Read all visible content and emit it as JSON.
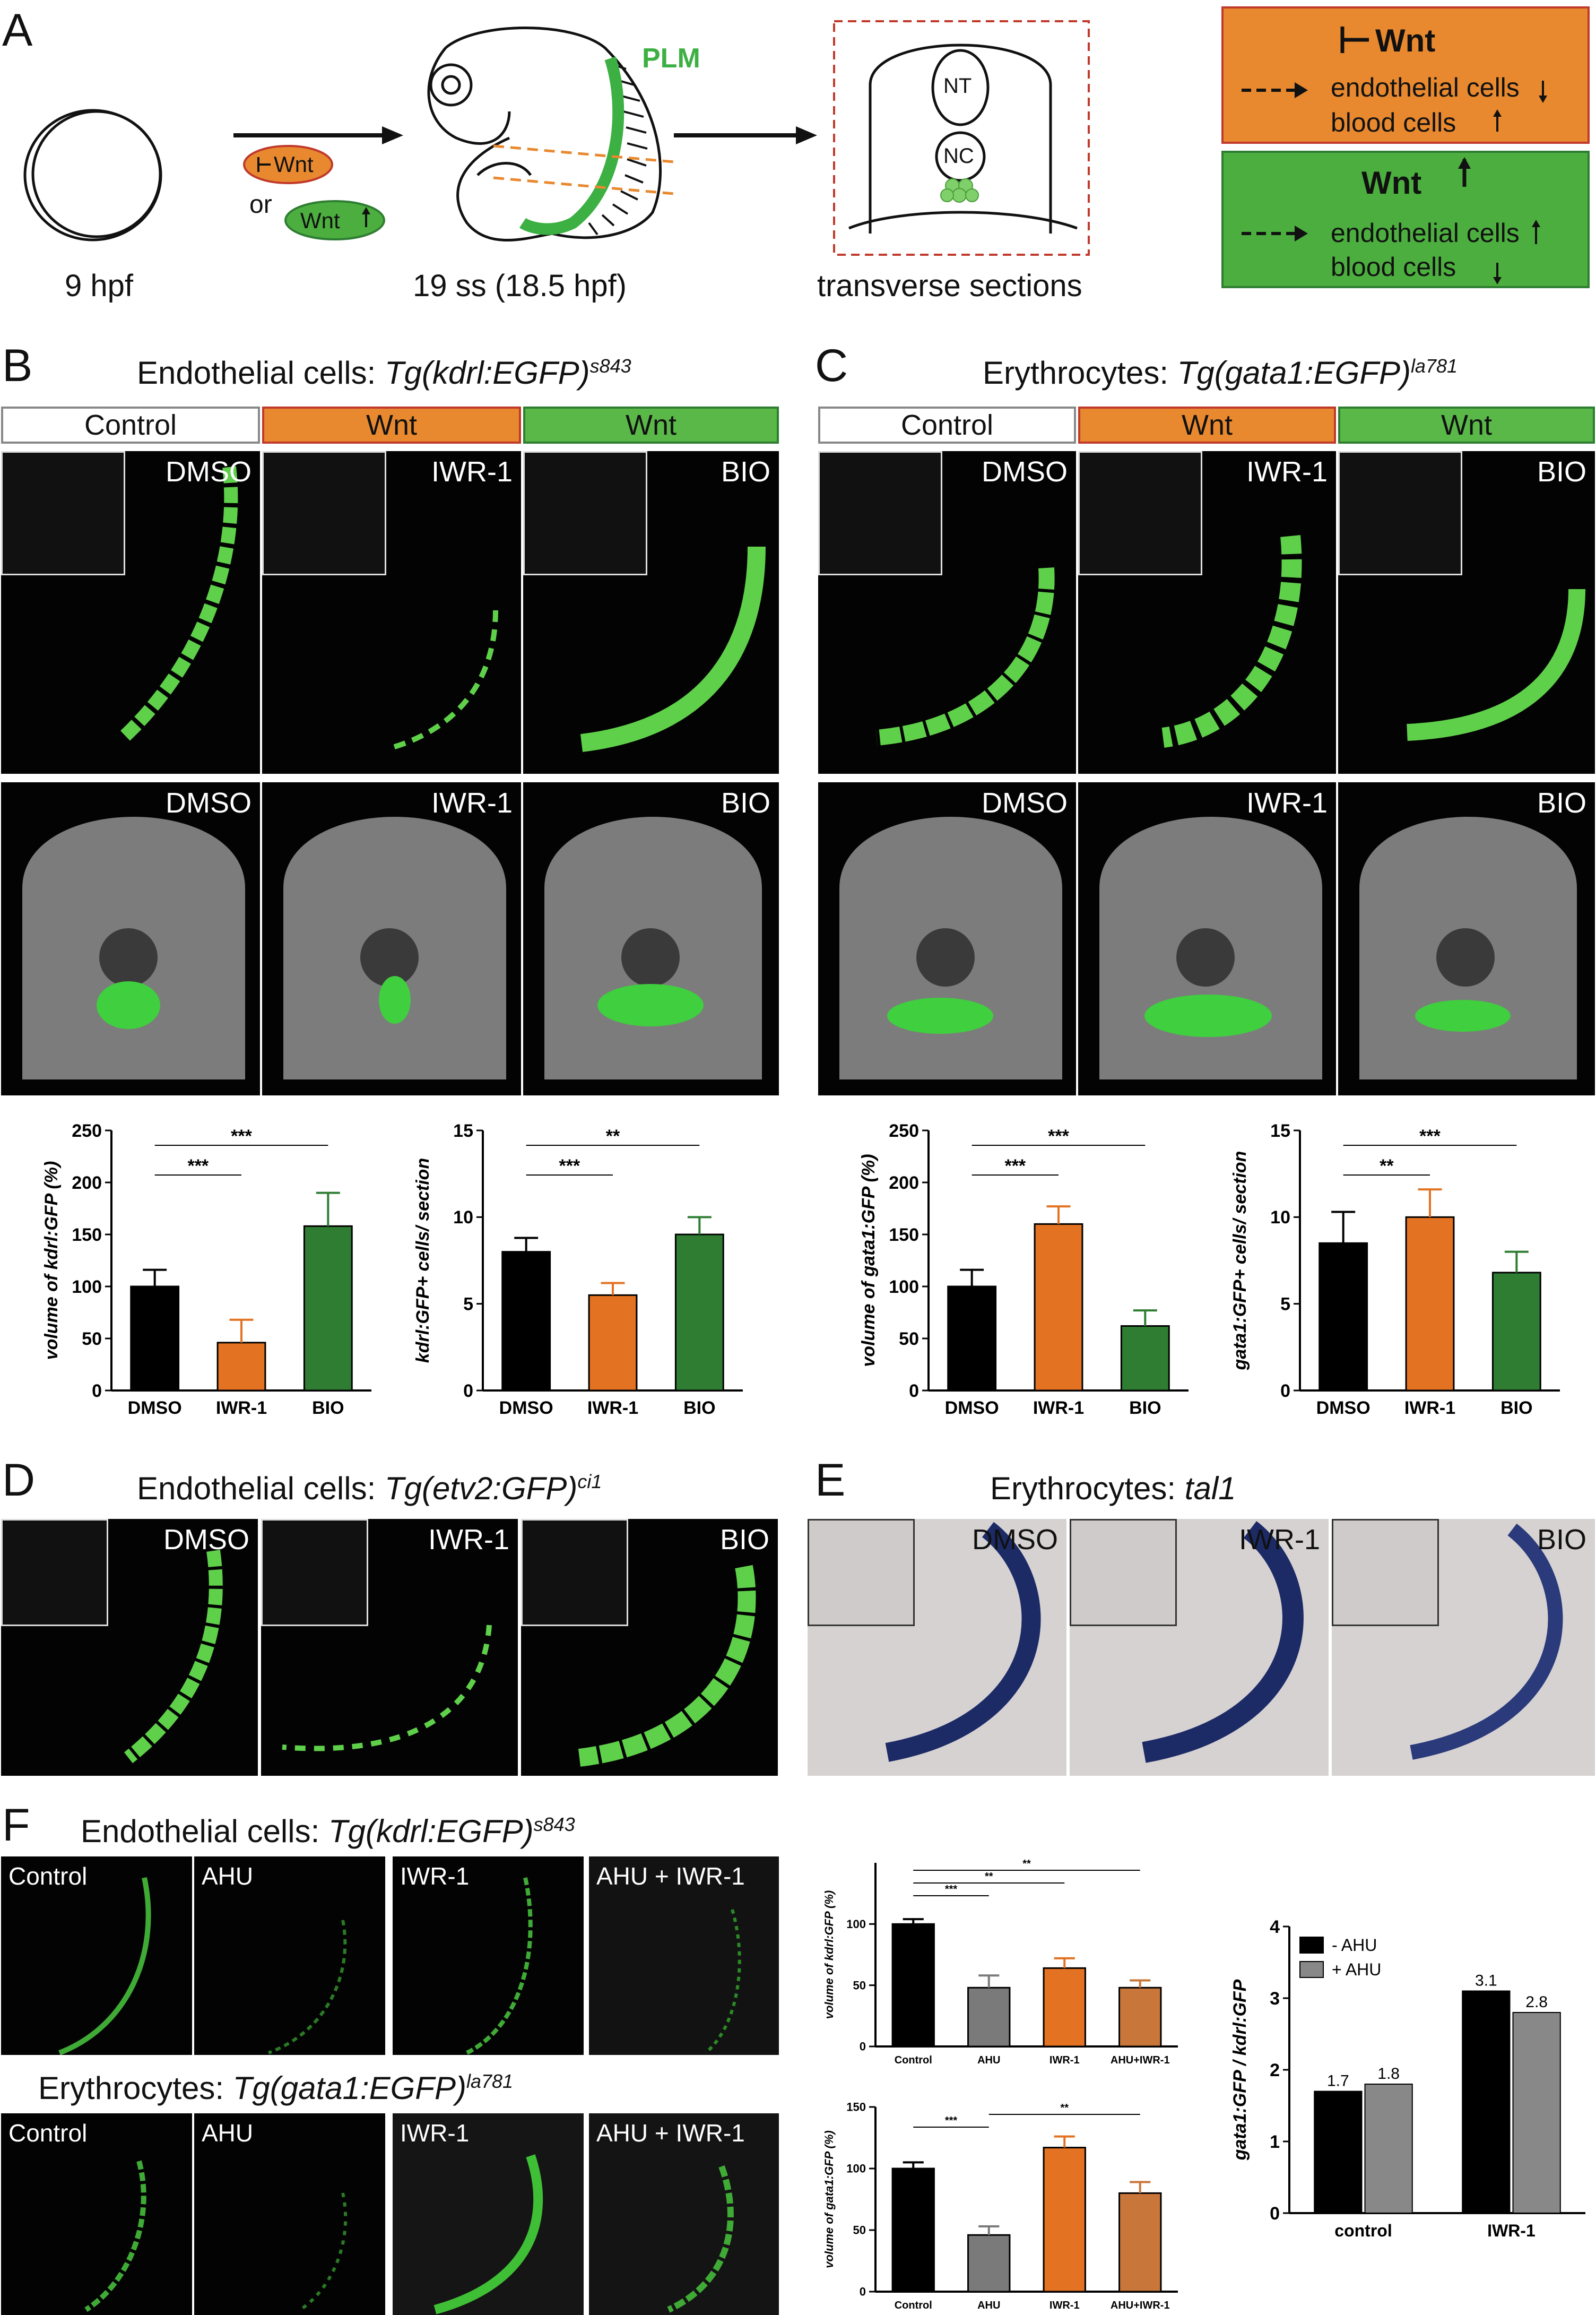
{
  "panel_labels": {
    "a": "A",
    "b": "B",
    "c": "C",
    "d": "D",
    "e": "E",
    "f": "F"
  },
  "panel_a": {
    "label_9hpf": "9 hpf",
    "label_19ss": "19 ss (18.5 hpf)",
    "label_sections": "transverse sections",
    "plm": "PLM",
    "nt": "NT",
    "nc": "NC",
    "or": "or",
    "inhibit_pill": "Wnt",
    "activate_pill": "Wnt",
    "box_inhibit": {
      "title": "Wnt",
      "line1": "endothelial cells",
      "line2": "blood cells"
    },
    "box_activate": {
      "title": "Wnt",
      "line1": "endothelial cells",
      "line2": "blood cells"
    },
    "colors": {
      "orange": "#e8892f",
      "green": "#4cae3f",
      "plm": "#3cb043"
    }
  },
  "panel_b": {
    "title_prefix": "Endothelial cells: ",
    "title_gene": "Tg(kdrl:EGFP)",
    "title_sup": "s843",
    "headers": [
      "Control",
      "Wnt",
      "Wnt"
    ],
    "image_labels": [
      "DMSO",
      "IWR-1",
      "BIO"
    ]
  },
  "panel_c": {
    "title_prefix": "Erythrocytes: ",
    "title_gene": "Tg(gata1:EGFP)",
    "title_sup": "la781",
    "headers": [
      "Control",
      "Wnt",
      "Wnt"
    ],
    "image_labels": [
      "DMSO",
      "IWR-1",
      "BIO"
    ]
  },
  "panel_d": {
    "title_prefix": "Endothelial cells: ",
    "title_gene": "Tg(etv2:GFP)",
    "title_sup": "ci1",
    "image_labels": [
      "DMSO",
      "IWR-1",
      "BIO"
    ]
  },
  "panel_e": {
    "title_prefix": "Erythrocytes: ",
    "title_gene": "tal1",
    "image_labels": [
      "DMSO",
      "IWR-1",
      "BIO"
    ]
  },
  "panel_f": {
    "title1_prefix": "Endothelial cells: ",
    "title1_gene": "Tg(kdrl:EGFP)",
    "title1_sup": "s843",
    "title2_prefix": "Erythrocytes: ",
    "title2_gene": "Tg(gata1:EGFP)",
    "title2_sup": "la781",
    "image_labels": [
      "Control",
      "AHU",
      "IWR-1",
      "AHU + IWR-1"
    ]
  },
  "chart_data": [
    {
      "id": "b1",
      "type": "bar",
      "categories": [
        "DMSO",
        "IWR-1",
        "BIO"
      ],
      "values": [
        100,
        46,
        158
      ],
      "errors": [
        16,
        22,
        32
      ],
      "ylabel": "volume of kdrl:GFP (%)",
      "ylim": [
        0,
        250
      ],
      "yticks": [
        0,
        50,
        100,
        150,
        200,
        250
      ],
      "colors": [
        "#000000",
        "#e37222",
        "#2e7d32"
      ],
      "significance": [
        {
          "from": 0,
          "to": 1,
          "label": "***"
        },
        {
          "from": 0,
          "to": 2,
          "label": "***"
        }
      ]
    },
    {
      "id": "b2",
      "type": "bar",
      "categories": [
        "DMSO",
        "IWR-1",
        "BIO"
      ],
      "values": [
        8.0,
        5.5,
        9.0
      ],
      "errors": [
        0.8,
        0.7,
        1.0
      ],
      "ylabel": "kdrl:GFP+ cells/ section",
      "ylim": [
        0,
        15
      ],
      "yticks": [
        0,
        5,
        10,
        15
      ],
      "colors": [
        "#000000",
        "#e37222",
        "#2e7d32"
      ],
      "significance": [
        {
          "from": 0,
          "to": 1,
          "label": "***"
        },
        {
          "from": 0,
          "to": 2,
          "label": "**"
        }
      ]
    },
    {
      "id": "c1",
      "type": "bar",
      "categories": [
        "DMSO",
        "IWR-1",
        "BIO"
      ],
      "values": [
        100,
        160,
        62
      ],
      "errors": [
        16,
        17,
        15
      ],
      "ylabel": "volume of gata1:GFP (%)",
      "ylim": [
        0,
        250
      ],
      "yticks": [
        0,
        50,
        100,
        150,
        200,
        250
      ],
      "colors": [
        "#000000",
        "#e37222",
        "#2e7d32"
      ],
      "significance": [
        {
          "from": 0,
          "to": 1,
          "label": "***"
        },
        {
          "from": 0,
          "to": 2,
          "label": "***"
        }
      ]
    },
    {
      "id": "c2",
      "type": "bar",
      "categories": [
        "DMSO",
        "IWR-1",
        "BIO"
      ],
      "values": [
        8.5,
        10.0,
        6.8
      ],
      "errors": [
        1.8,
        1.6,
        1.2
      ],
      "ylabel": "gata1:GFP+ cells/ section",
      "ylim": [
        0,
        15
      ],
      "yticks": [
        0,
        5,
        10,
        15
      ],
      "colors": [
        "#000000",
        "#e37222",
        "#2e7d32"
      ],
      "significance": [
        {
          "from": 0,
          "to": 1,
          "label": "**"
        },
        {
          "from": 0,
          "to": 2,
          "label": "***"
        }
      ]
    },
    {
      "id": "f1",
      "type": "bar",
      "categories": [
        "Control",
        "AHU",
        "IWR-1",
        "AHU+IWR-1"
      ],
      "values": [
        100,
        48,
        64,
        48
      ],
      "errors": [
        4,
        10,
        8,
        6
      ],
      "ylabel": "volume of kdrl:GFP (%)",
      "ylim": [
        0,
        150
      ],
      "yticks": [
        0,
        50,
        100
      ],
      "colors": [
        "#000000",
        "#7a7a7a",
        "#e37222",
        "#c8763a"
      ],
      "significance": [
        {
          "from": 0,
          "to": 1,
          "label": "***"
        },
        {
          "from": 0,
          "to": 2,
          "label": "**"
        },
        {
          "from": 0,
          "to": 3,
          "label": "**"
        }
      ]
    },
    {
      "id": "f2",
      "type": "bar",
      "categories": [
        "Control",
        "AHU",
        "IWR-1",
        "AHU+IWR-1"
      ],
      "values": [
        100,
        46,
        117,
        80
      ],
      "errors": [
        5,
        7,
        9,
        9
      ],
      "ylabel": "volume of gata1:GFP (%)",
      "ylim": [
        0,
        150
      ],
      "yticks": [
        0,
        50,
        100,
        150
      ],
      "colors": [
        "#000000",
        "#7a7a7a",
        "#e37222",
        "#c8763a"
      ],
      "significance": [
        {
          "from": 0,
          "to": 1,
          "label": "***"
        },
        {
          "from": 1,
          "to": 3,
          "label": "**"
        }
      ]
    },
    {
      "id": "f3",
      "type": "bar",
      "categories": [
        "control",
        "IWR-1"
      ],
      "series": [
        {
          "name": "- AHU",
          "values": [
            1.7,
            3.1
          ],
          "color": "#000000"
        },
        {
          "name": "+ AHU",
          "values": [
            1.8,
            2.8
          ],
          "color": "#888888"
        }
      ],
      "ylabel": "gata1:GFP / kdrl:GFP",
      "ylim": [
        0,
        4
      ],
      "yticks": [
        0,
        1,
        2,
        3,
        4
      ],
      "legend": "top-left"
    }
  ]
}
